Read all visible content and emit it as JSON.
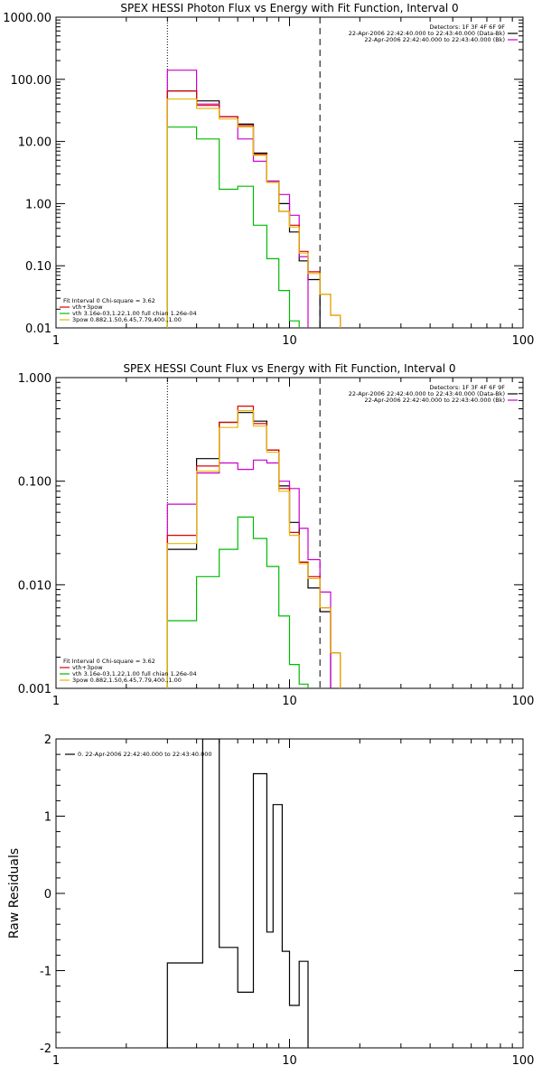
{
  "chart_data": [
    {
      "type": "line",
      "title": "SPEX HESSI Photon Flux vs Energy with Fit Function, Interval 0",
      "xscale": "log",
      "yscale": "log",
      "xlim": [
        1,
        100
      ],
      "ylim": [
        0.01,
        1000
      ],
      "xticks": [
        1,
        10,
        100
      ],
      "xtick_labels": [
        "1",
        "10",
        "100"
      ],
      "yticks": [
        0.01,
        0.1,
        1,
        10,
        100,
        1000
      ],
      "ytick_labels": [
        "0.01",
        "0.10",
        "1.00",
        "10.00",
        "100.00",
        "1000.00"
      ],
      "vlines": [
        {
          "x": 3.0,
          "style": "dotted"
        },
        {
          "x": 13.5,
          "style": "dashed"
        }
      ],
      "legend_top": {
        "lines": [
          {
            "text": "Detectors: 1F 3F 4F 6F 9F",
            "color": "#000000"
          },
          {
            "text": "22-Apr-2006 22:42:40.000 to 22:43:40.000 (Data-Bk)",
            "color": "#000000"
          },
          {
            "text": "22-Apr-2006 22:42:40.000 to 22:43:40.000 (Bk)",
            "color": "#cc00cc"
          }
        ]
      },
      "legend_bottom": {
        "lines": [
          {
            "text": "Fit Interval 0   Chi-square = 3.62",
            "color": "#000000"
          },
          {
            "text": "vth+3pow",
            "color": "#dd0000"
          },
          {
            "text": "vth 3.16e-03,1.22,1.00  full chian 1.26e-04",
            "color": "#00bb00"
          },
          {
            "text": "3pow 0.882,1.50,6.45,7.79,400.,1.00",
            "color": "#e6b800"
          }
        ]
      },
      "edges": [
        3.0,
        4.0,
        5.0,
        6.0,
        7.0,
        8.0,
        9.0,
        10.0,
        11.0,
        12.0,
        13.5,
        15.0,
        16.5
      ],
      "series": [
        {
          "name": "Data-Bk",
          "color": "#000000",
          "values": [
            65,
            45,
            25,
            19,
            6.5,
            2.3,
            1.0,
            0.35,
            0.12,
            0.06,
            null,
            null
          ]
        },
        {
          "name": "Bk",
          "color": "#cc00cc",
          "values": [
            140,
            40,
            25,
            11,
            4.8,
            2.3,
            1.4,
            0.65,
            0.14,
            null,
            null,
            null
          ]
        },
        {
          "name": "vth+3pow",
          "color": "#dd0000",
          "values": [
            65,
            38,
            25,
            18,
            6.2,
            2.2,
            0.75,
            0.45,
            0.17,
            0.08,
            0.035,
            0.016
          ]
        },
        {
          "name": "vth",
          "color": "#00bb00",
          "values": [
            17,
            11,
            1.7,
            1.9,
            0.45,
            0.13,
            0.04,
            0.013,
            null,
            null,
            null,
            null
          ]
        },
        {
          "name": "3pow",
          "color": "#e6b800",
          "values": [
            48,
            34,
            23,
            17,
            6.0,
            2.2,
            0.75,
            0.42,
            0.16,
            0.075,
            0.035,
            0.016
          ]
        }
      ]
    },
    {
      "type": "line",
      "title": "SPEX HESSI Count Flux vs Energy with Fit Function, Interval 0",
      "xscale": "log",
      "yscale": "log",
      "xlim": [
        1,
        100
      ],
      "ylim": [
        0.001,
        1
      ],
      "xticks": [
        1,
        10,
        100
      ],
      "xtick_labels": [
        "1",
        "10",
        "100"
      ],
      "yticks": [
        0.001,
        0.01,
        0.1,
        1
      ],
      "ytick_labels": [
        "0.001",
        "0.010",
        "0.100",
        "1.000"
      ],
      "vlines": [
        {
          "x": 3.0,
          "style": "dotted"
        },
        {
          "x": 13.5,
          "style": "dashed"
        }
      ],
      "legend_top": {
        "lines": [
          {
            "text": "Detectors: 1F 3F 4F 6F 9F",
            "color": "#000000"
          },
          {
            "text": "22-Apr-2006 22:42:40.000 to 22:43:40.000 (Data-Bk)",
            "color": "#000000"
          },
          {
            "text": "22-Apr-2006 22:42:40.000 to 22:43:40.000 (Bk)",
            "color": "#cc00cc"
          }
        ]
      },
      "legend_bottom": {
        "lines": [
          {
            "text": "Fit Interval 0   Chi-square = 3.62",
            "color": "#000000"
          },
          {
            "text": "vth+3pow",
            "color": "#dd0000"
          },
          {
            "text": "vth 3.16e-03,1.22,1.00  full chian 1.26e-04",
            "color": "#00bb00"
          },
          {
            "text": "3pow 0.882,1.50,6.45,7.79,400.,1.00",
            "color": "#e6b800"
          }
        ]
      },
      "edges": [
        3.0,
        4.0,
        5.0,
        6.0,
        7.0,
        8.0,
        9.0,
        10.0,
        11.0,
        12.0,
        13.5,
        15.0,
        16.5
      ],
      "series": [
        {
          "name": "Data-Bk",
          "color": "#000000",
          "values": [
            0.022,
            0.165,
            0.37,
            0.46,
            0.38,
            0.2,
            0.09,
            0.04,
            0.0165,
            0.0093,
            0.0055,
            null
          ]
        },
        {
          "name": "Bk",
          "color": "#cc00cc",
          "values": [
            0.06,
            0.12,
            0.15,
            0.13,
            0.16,
            0.15,
            0.1,
            0.085,
            0.035,
            0.0175,
            0.0085,
            null
          ]
        },
        {
          "name": "vth+3pow",
          "color": "#dd0000",
          "values": [
            0.03,
            0.14,
            0.37,
            0.53,
            0.36,
            0.2,
            0.085,
            0.032,
            0.0165,
            0.012,
            0.006,
            0.0022
          ]
        },
        {
          "name": "vth",
          "color": "#00bb00",
          "values": [
            0.0045,
            0.012,
            0.022,
            0.045,
            0.028,
            0.015,
            0.005,
            0.0017,
            0.0011,
            null,
            null,
            null
          ]
        },
        {
          "name": "3pow",
          "color": "#e6b800",
          "values": [
            0.025,
            0.125,
            0.33,
            0.48,
            0.34,
            0.19,
            0.08,
            0.03,
            0.016,
            0.0115,
            0.006,
            0.0022
          ]
        }
      ]
    },
    {
      "type": "line",
      "title": "",
      "ylabel": "Raw Residuals",
      "xscale": "log",
      "yscale": "linear",
      "xlim": [
        1,
        100
      ],
      "ylim": [
        -2,
        2
      ],
      "xticks": [
        1,
        10,
        100
      ],
      "xtick_labels": [
        "1",
        "10",
        "100"
      ],
      "yticks": [
        -2,
        -1,
        0,
        1,
        2
      ],
      "ytick_labels": [
        "-2",
        "-1",
        "0",
        "1",
        "2"
      ],
      "legend_top": {
        "lines": [
          {
            "text": "0. 22-Apr-2006 22:42:40.000 to 22:43:40.000",
            "color": "#000000"
          }
        ]
      },
      "edges": [
        3.0,
        3.5,
        4.25,
        5.0,
        6.0,
        7.0,
        8.0,
        8.5,
        9.3,
        10.0,
        11.0,
        12.0,
        13.5
      ],
      "series": [
        {
          "name": "residuals",
          "color": "#000000",
          "values": [
            -0.9,
            -0.9,
            2.0,
            -0.7,
            -1.28,
            1.55,
            -0.5,
            1.15,
            -0.75,
            -1.45,
            -0.88,
            null
          ]
        }
      ]
    }
  ]
}
